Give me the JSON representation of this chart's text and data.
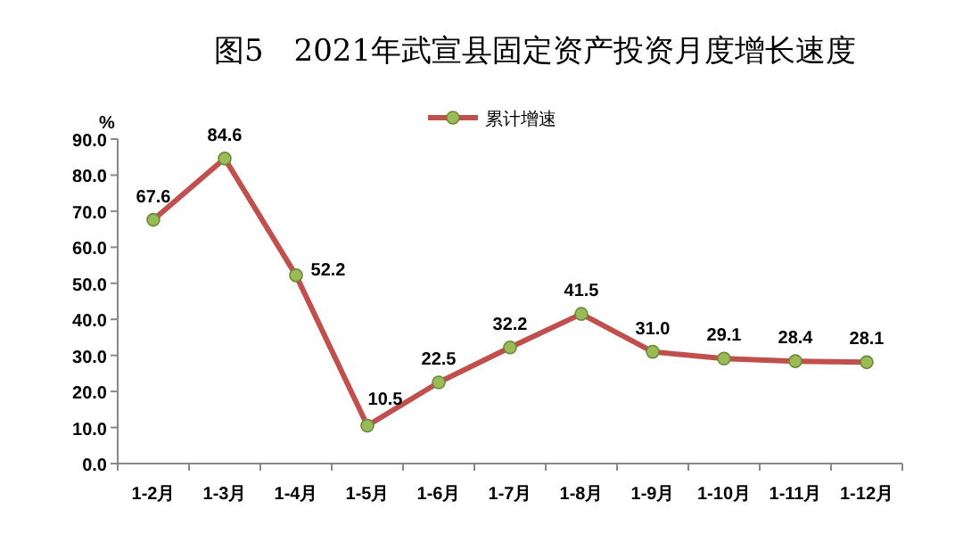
{
  "chart_data": {
    "type": "line",
    "title": "图5　2021年武宣县固定资产投资月度增长速度",
    "ylabel": "%",
    "categories": [
      "1-2月",
      "1-3月",
      "1-4月",
      "1-5月",
      "1-6月",
      "1-7月",
      "1-8月",
      "1-9月",
      "1-10月",
      "1-11月",
      "1-12月"
    ],
    "series": [
      {
        "name": "累计增速",
        "color": "#c0504d",
        "values": [
          67.6,
          84.6,
          52.2,
          10.5,
          22.5,
          32.2,
          41.5,
          31.0,
          29.1,
          28.4,
          28.1
        ],
        "value_labels": [
          "67.6",
          "84.6",
          "52.2",
          "10.5",
          "22.5",
          "32.2",
          "41.5",
          "31.0",
          "29.1",
          "28.4",
          "28.1"
        ]
      }
    ],
    "ylim": [
      0,
      90
    ],
    "yticks": [
      {
        "value": 0,
        "label": "0.0"
      },
      {
        "value": 10,
        "label": "10.0"
      },
      {
        "value": 20,
        "label": "20.0"
      },
      {
        "value": 30,
        "label": "30.0"
      },
      {
        "value": 40,
        "label": "40.0"
      },
      {
        "value": 50,
        "label": "50.0"
      },
      {
        "value": 60,
        "label": "60.0"
      },
      {
        "value": 70,
        "label": "70.0"
      },
      {
        "value": 80,
        "label": "80.0"
      },
      {
        "value": 90,
        "label": "90.0"
      }
    ],
    "marker": "circle",
    "legend": "top",
    "grid": false
  }
}
